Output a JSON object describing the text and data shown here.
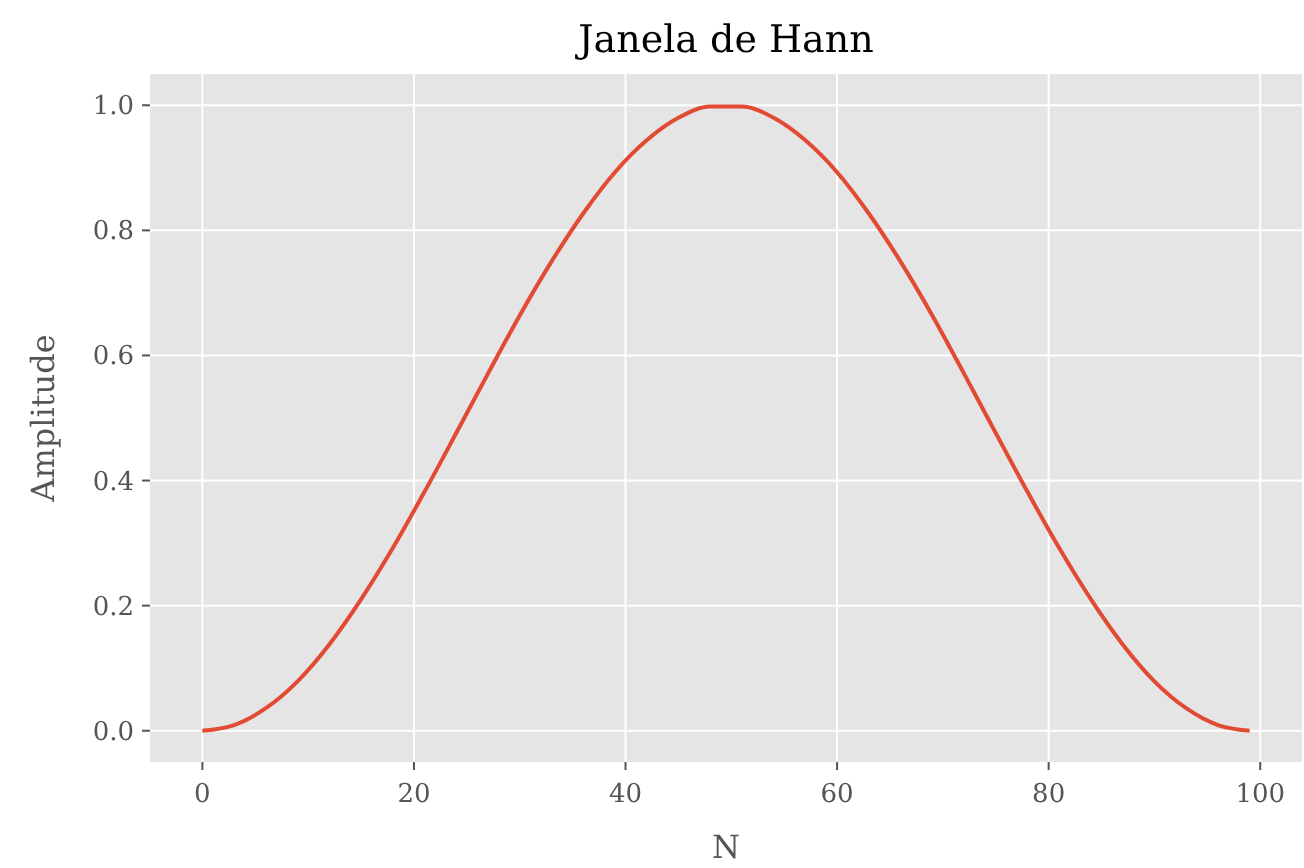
{
  "chart_data": {
    "type": "line",
    "title": "Janela de Hann",
    "xlabel": "N",
    "ylabel": "Amplitude",
    "x": [
      0,
      3,
      6,
      9,
      12,
      15,
      18,
      21,
      24,
      27,
      30,
      33,
      36,
      39,
      42,
      45,
      48,
      51,
      54,
      57,
      60,
      63,
      66,
      69,
      72,
      75,
      78,
      81,
      84,
      87,
      90,
      93,
      96,
      99
    ],
    "series": [
      {
        "color": "#e24a33",
        "values": [
          0,
          0.009,
          0.036,
          0.079,
          0.138,
          0.21,
          0.292,
          0.382,
          0.476,
          0.571,
          0.664,
          0.75,
          0.827,
          0.893,
          0.944,
          0.98,
          0.998,
          0.998,
          0.98,
          0.944,
          0.893,
          0.827,
          0.75,
          0.664,
          0.571,
          0.476,
          0.382,
          0.292,
          0.21,
          0.138,
          0.079,
          0.036,
          0.009,
          0
        ]
      }
    ],
    "xlim": [
      -4.95,
      103.95
    ],
    "ylim": [
      -0.05,
      1.05
    ],
    "xticks": [
      0,
      20,
      40,
      60,
      80,
      100
    ],
    "yticks": [
      {
        "value": 0,
        "label": "0.0"
      },
      {
        "value": 0.2,
        "label": "0.2"
      },
      {
        "value": 0.4,
        "label": "0.4"
      },
      {
        "value": 0.6,
        "label": "0.6"
      },
      {
        "value": 0.8,
        "label": "0.8"
      },
      {
        "value": 1,
        "label": "1.0"
      }
    ],
    "grid": true
  }
}
